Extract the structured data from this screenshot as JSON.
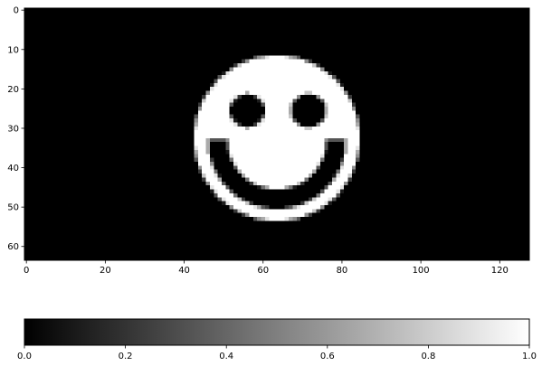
{
  "chart_data": {
    "type": "heatmap",
    "title": "",
    "xlabel": "",
    "ylabel": "",
    "image": {
      "width": 128,
      "height": 64,
      "colormap": "gray",
      "value_range": [
        0.0,
        1.0
      ],
      "background_value": 0.0,
      "features": [
        {
          "name": "face",
          "shape": "disk",
          "center": [
            63.5,
            32.5
          ],
          "radius": 21,
          "value": 1.0
        },
        {
          "name": "left-eye",
          "shape": "ellipse",
          "center": [
            56.0,
            25.5
          ],
          "radii": [
            4.5,
            4.2
          ],
          "value": 0.0
        },
        {
          "name": "right-eye",
          "shape": "ellipse",
          "center": [
            71.5,
            25.5
          ],
          "radii": [
            4.5,
            4.2
          ],
          "value": 0.0
        },
        {
          "name": "smile",
          "shape": "arc-band",
          "center": [
            63.5,
            33.0
          ],
          "inner_radius": 12.5,
          "outer_radius": 17.5,
          "from_y": 33.0,
          "value": 0.0
        }
      ]
    },
    "xticks": [
      0,
      20,
      40,
      60,
      80,
      100,
      120
    ],
    "xtick_labels": [
      "0",
      "20",
      "40",
      "60",
      "80",
      "100",
      "120"
    ],
    "yticks": [
      0,
      10,
      20,
      30,
      40,
      50,
      60
    ],
    "ytick_labels": [
      "0",
      "10",
      "20",
      "30",
      "40",
      "50",
      "60"
    ],
    "xlim": [
      -0.5,
      127.5
    ],
    "ylim": [
      63.5,
      -0.5
    ],
    "colorbar": {
      "orientation": "horizontal",
      "range": [
        0.0,
        1.0
      ],
      "ticks": [
        0.0,
        0.2,
        0.4,
        0.6,
        0.8,
        1.0
      ],
      "tick_labels": [
        "0.0",
        "0.2",
        "0.4",
        "0.6",
        "0.8",
        "1.0"
      ]
    }
  }
}
